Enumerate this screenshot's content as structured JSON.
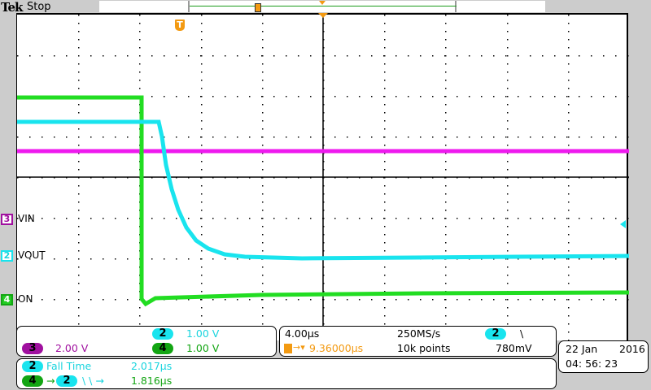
{
  "header": {
    "brand": "Tek",
    "acq_state": "Stop"
  },
  "colors": {
    "ch2": "#19e4ee",
    "ch3": "#e81ae8",
    "ch4": "#22dd22",
    "trigger": "#f39a12",
    "ch3_text": "#a0109f",
    "ch4_text": "#13a513"
  },
  "channels": [
    {
      "num": "3",
      "label": "VIN",
      "scale": "2.00 V"
    },
    {
      "num": "2",
      "label": "VOUT",
      "scale": "1.00 V"
    },
    {
      "num": "4",
      "label": "ON",
      "scale": "1.00 V"
    }
  ],
  "horizontal": {
    "scale": "4.00µs",
    "sample_rate": "250MS/s",
    "delay": "9.36000µs",
    "record_length": "10k points"
  },
  "trigger": {
    "source": "2",
    "slope": "\\",
    "level": "780mV",
    "marker": "T"
  },
  "measurements": [
    {
      "source": "2",
      "name": "Fall Time",
      "value": "2.017µs"
    },
    {
      "source": "4",
      "target": "2",
      "name": "\\ \\ →",
      "value": "1.816µs"
    }
  ],
  "datetime": {
    "date": "22 Jan",
    "year": "2016",
    "time": "04: 56: 23"
  }
}
